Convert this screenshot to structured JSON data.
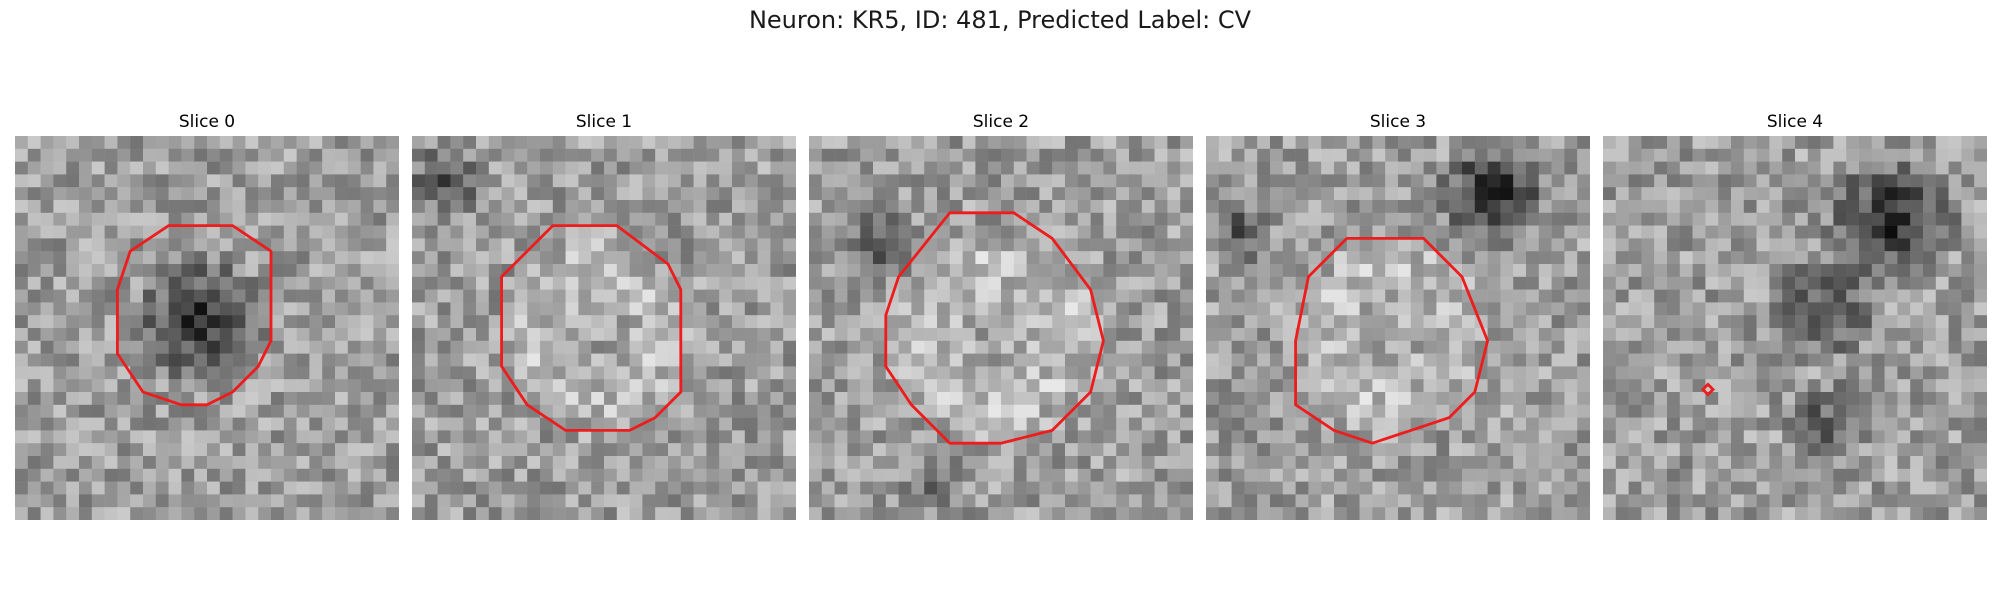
{
  "figure": {
    "title": "Neuron: KR5, ID: 481, Predicted Label: CV"
  },
  "contour_color": "#ee1c1c",
  "slices": [
    {
      "title": "Slice 0"
    },
    {
      "title": "Slice 1"
    },
    {
      "title": "Slice 2"
    },
    {
      "title": "Slice 3"
    },
    {
      "title": "Slice 4"
    }
  ]
}
